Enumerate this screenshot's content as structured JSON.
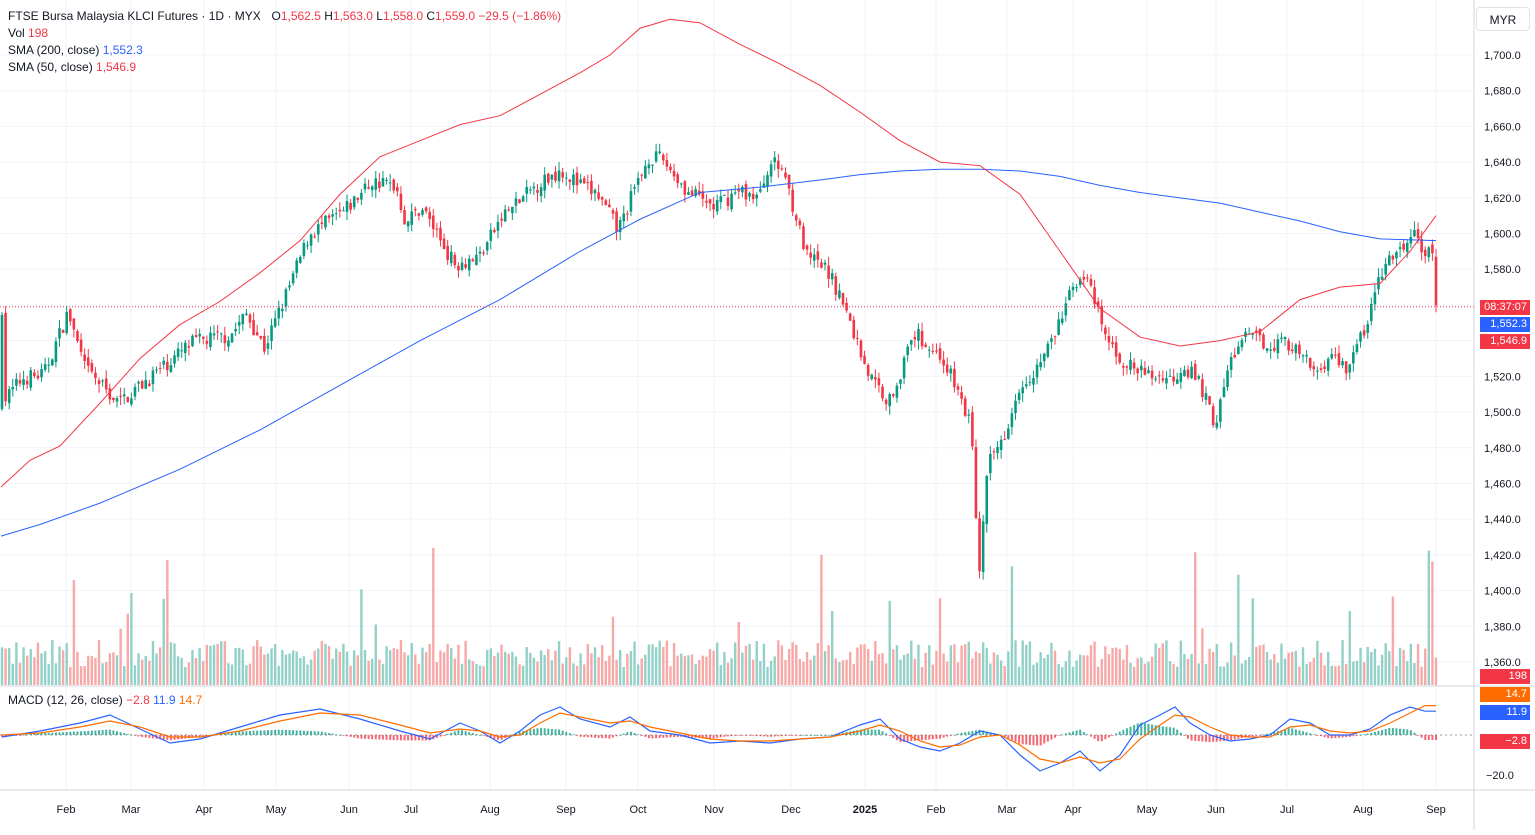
{
  "header": {
    "symbol": "FTSE Bursa Malaysia KLCI Futures",
    "interval": "1D",
    "exchange": "MYX",
    "open_label": "O",
    "open": "1,562.5",
    "high_label": "H",
    "high": "1,563.0",
    "low_label": "L",
    "low": "1,558.0",
    "close_label": "C",
    "close": "1,559.0",
    "change": "−29.5 (−1.86%)",
    "vol_label": "Vol",
    "vol": "198",
    "sma200_label": "SMA (200, close)",
    "sma200": "1,552.3",
    "sma50_label": "SMA (50, close)",
    "sma50": "1,546.9"
  },
  "currency": "MYR",
  "price_tags": {
    "countdown": "08:37:07",
    "sma200": "1,552.3",
    "sma50": "1,546.9",
    "volume": "198",
    "macd_signal": "14.7",
    "macd_line": "11.9",
    "macd_hist": "−2.8"
  },
  "macd_legend": {
    "label": "MACD (12, 26, close)",
    "hist": "−2.8",
    "macd": "11.9",
    "signal": "14.7"
  },
  "colors": {
    "up": "#089981",
    "down": "#f23645",
    "sma200": "#2962ff",
    "sma50": "#f23645",
    "vol_up": "#92d1c7",
    "vol_down": "#f7a9a7",
    "macd": "#2962ff",
    "signal": "#ff6d00"
  },
  "chart_data": {
    "type": "candlestick",
    "price_axis": {
      "ticks": [
        "1,700.0",
        "1,680.0",
        "1,660.0",
        "1,640.0",
        "1,620.0",
        "1,600.0",
        "1,580.0",
        "1,560.0",
        "1,540.0",
        "1,520.0",
        "1,500.0",
        "1,480.0",
        "1,460.0",
        "1,440.0",
        "1,420.0",
        "1,400.0",
        "1,380.0",
        "1,360.0"
      ],
      "ylim": [
        1355,
        1710
      ]
    },
    "time_axis": [
      "Feb",
      "Mar",
      "Apr",
      "May",
      "Jun",
      "Jul",
      "Aug",
      "Sep",
      "Oct",
      "Nov",
      "Dec",
      "2025",
      "Feb",
      "Mar",
      "Apr",
      "May",
      "Jun",
      "Jul",
      "Aug",
      "Sep"
    ],
    "last_price": 1559.0,
    "price_path": [
      [
        1496,
        1506
      ],
      [
        1508,
        1519
      ],
      [
        1521,
        1521
      ],
      [
        1536,
        1556
      ],
      [
        1546,
        1525
      ],
      [
        1567,
        1505
      ],
      [
        1613,
        1539
      ],
      [
        1636,
        1543
      ],
      [
        1646,
        1555
      ],
      [
        1657,
        1536
      ],
      [
        1670,
        1565
      ],
      [
        1685,
        1600
      ],
      [
        1706,
        1612
      ],
      [
        1723,
        1629
      ],
      [
        1738,
        1627
      ],
      [
        1744,
        1606
      ],
      [
        1754,
        1615
      ],
      [
        1774,
        1583
      ],
      [
        1789,
        1587
      ],
      [
        1804,
        1610
      ],
      [
        1825,
        1627
      ],
      [
        1840,
        1636
      ],
      [
        1850,
        1628
      ],
      [
        1862,
        1622
      ],
      [
        1875,
        1602
      ],
      [
        1883,
        1620
      ],
      [
        1894,
        1643
      ],
      [
        1903,
        1641
      ],
      [
        1918,
        1623
      ],
      [
        1934,
        1615
      ],
      [
        1950,
        1624
      ],
      [
        1962,
        1620
      ],
      [
        1968,
        1640
      ],
      [
        1977,
        1636
      ],
      [
        1991,
        1587
      ],
      [
        2003,
        1580
      ],
      [
        2011,
        1567
      ],
      [
        2030,
        1520
      ],
      [
        2042,
        1506
      ],
      [
        2058,
        1544
      ],
      [
        2075,
        1530
      ],
      [
        2085,
        1510
      ],
      [
        2093,
        1490
      ],
      [
        2097,
        1406
      ],
      [
        2103,
        1470
      ],
      [
        2113,
        1488
      ],
      [
        2122,
        1515
      ],
      [
        2133,
        1525
      ],
      [
        2144,
        1543
      ],
      [
        2156,
        1572
      ],
      [
        2161,
        1578
      ],
      [
        2166,
        1568
      ],
      [
        2176,
        1540
      ],
      [
        2186,
        1528
      ],
      [
        2197,
        1522
      ],
      [
        2207,
        1520
      ],
      [
        2218,
        1519
      ],
      [
        2223,
        1527
      ],
      [
        2233,
        1517
      ],
      [
        2243,
        1493
      ],
      [
        2253,
        1531
      ],
      [
        2263,
        1543
      ],
      [
        2276,
        1538
      ],
      [
        2286,
        1540
      ],
      [
        2296,
        1531
      ],
      [
        2305,
        1522
      ],
      [
        2314,
        1532
      ],
      [
        2324,
        1525
      ],
      [
        2335,
        1546
      ],
      [
        2346,
        1580
      ],
      [
        2357,
        1590
      ],
      [
        2365,
        1600
      ],
      [
        2371,
        1590
      ],
      [
        2378,
        1588
      ],
      [
        2379,
        1559
      ]
    ],
    "candle_count": 400,
    "sma200_path": [
      [
        1,
        1430.5
      ],
      [
        40,
        1437
      ],
      [
        100,
        1449
      ],
      [
        180,
        1468
      ],
      [
        260,
        1490
      ],
      [
        340,
        1515
      ],
      [
        420,
        1540
      ],
      [
        500,
        1563
      ],
      [
        580,
        1590
      ],
      [
        640,
        1608
      ],
      [
        700,
        1623
      ],
      [
        760,
        1626
      ],
      [
        820,
        1630
      ],
      [
        860,
        1633
      ],
      [
        900,
        1635
      ],
      [
        940,
        1636
      ],
      [
        980,
        1636
      ],
      [
        1020,
        1635
      ],
      [
        1060,
        1632
      ],
      [
        1100,
        1627
      ],
      [
        1140,
        1623
      ],
      [
        1180,
        1620
      ],
      [
        1220,
        1617
      ],
      [
        1260,
        1612
      ],
      [
        1300,
        1607
      ],
      [
        1340,
        1601
      ],
      [
        1380,
        1597
      ],
      [
        1436,
        1596
      ]
    ],
    "sma50_path": [
      [
        1,
        1458
      ],
      [
        30,
        1473
      ],
      [
        60,
        1481
      ],
      [
        100,
        1505
      ],
      [
        140,
        1530
      ],
      [
        180,
        1549
      ],
      [
        220,
        1562
      ],
      [
        260,
        1578
      ],
      [
        300,
        1596
      ],
      [
        340,
        1622
      ],
      [
        380,
        1643
      ],
      [
        420,
        1652
      ],
      [
        460,
        1661
      ],
      [
        500,
        1666
      ],
      [
        540,
        1678
      ],
      [
        580,
        1690
      ],
      [
        610,
        1700
      ],
      [
        640,
        1715
      ],
      [
        670,
        1720
      ],
      [
        700,
        1718
      ],
      [
        740,
        1706
      ],
      [
        780,
        1695
      ],
      [
        820,
        1683
      ],
      [
        860,
        1668
      ],
      [
        900,
        1652
      ],
      [
        940,
        1640
      ],
      [
        980,
        1638
      ],
      [
        1020,
        1622
      ],
      [
        1060,
        1590
      ],
      [
        1100,
        1558
      ],
      [
        1140,
        1542
      ],
      [
        1180,
        1537
      ],
      [
        1220,
        1540
      ],
      [
        1260,
        1545
      ],
      [
        1300,
        1563
      ],
      [
        1340,
        1570
      ],
      [
        1380,
        1572
      ],
      [
        1410,
        1590
      ],
      [
        1436,
        1610
      ]
    ],
    "volume_ylim": [
      0,
      440
    ],
    "macd_axis": {
      "ticks": [
        "−20.0"
      ],
      "ylim": [
        -28,
        28
      ]
    },
    "macd_line": [
      [
        2,
        -1
      ],
      [
        40,
        2
      ],
      [
        80,
        6
      ],
      [
        110,
        10
      ],
      [
        140,
        3
      ],
      [
        170,
        -4
      ],
      [
        200,
        -2
      ],
      [
        240,
        4
      ],
      [
        280,
        10
      ],
      [
        320,
        13
      ],
      [
        360,
        8
      ],
      [
        400,
        2
      ],
      [
        430,
        -2
      ],
      [
        460,
        6
      ],
      [
        480,
        2
      ],
      [
        500,
        -4
      ],
      [
        520,
        2
      ],
      [
        540,
        10
      ],
      [
        560,
        14
      ],
      [
        580,
        8
      ],
      [
        610,
        4
      ],
      [
        630,
        9
      ],
      [
        650,
        2
      ],
      [
        680,
        0
      ],
      [
        710,
        -4
      ],
      [
        740,
        -3
      ],
      [
        770,
        -4
      ],
      [
        800,
        -2
      ],
      [
        830,
        -1
      ],
      [
        860,
        5
      ],
      [
        880,
        8
      ],
      [
        900,
        -2
      ],
      [
        920,
        -6
      ],
      [
        940,
        -8
      ],
      [
        960,
        -4
      ],
      [
        980,
        2
      ],
      [
        1000,
        0
      ],
      [
        1020,
        -10
      ],
      [
        1040,
        -18
      ],
      [
        1060,
        -14
      ],
      [
        1080,
        -8
      ],
      [
        1100,
        -18
      ],
      [
        1120,
        -10
      ],
      [
        1140,
        5
      ],
      [
        1160,
        10
      ],
      [
        1175,
        14
      ],
      [
        1190,
        6
      ],
      [
        1210,
        0
      ],
      [
        1230,
        -3
      ],
      [
        1250,
        -2
      ],
      [
        1270,
        0
      ],
      [
        1290,
        8
      ],
      [
        1310,
        6
      ],
      [
        1330,
        0
      ],
      [
        1350,
        0
      ],
      [
        1370,
        3
      ],
      [
        1390,
        10
      ],
      [
        1410,
        14
      ],
      [
        1425,
        11.9
      ],
      [
        1436,
        11.9
      ]
    ],
    "signal_line": [
      [
        2,
        0
      ],
      [
        40,
        1
      ],
      [
        80,
        4
      ],
      [
        110,
        7
      ],
      [
        140,
        4
      ],
      [
        170,
        -1
      ],
      [
        200,
        -1
      ],
      [
        240,
        2
      ],
      [
        280,
        7
      ],
      [
        320,
        11
      ],
      [
        360,
        10
      ],
      [
        400,
        5
      ],
      [
        430,
        1
      ],
      [
        460,
        3
      ],
      [
        480,
        2
      ],
      [
        500,
        -1
      ],
      [
        520,
        0
      ],
      [
        540,
        6
      ],
      [
        560,
        11
      ],
      [
        580,
        9
      ],
      [
        610,
        6
      ],
      [
        630,
        7
      ],
      [
        650,
        4
      ],
      [
        680,
        1
      ],
      [
        710,
        -2
      ],
      [
        740,
        -3
      ],
      [
        770,
        -3
      ],
      [
        800,
        -2
      ],
      [
        830,
        -1
      ],
      [
        860,
        2
      ],
      [
        880,
        5
      ],
      [
        900,
        2
      ],
      [
        920,
        -3
      ],
      [
        940,
        -6
      ],
      [
        960,
        -5
      ],
      [
        980,
        -1
      ],
      [
        1000,
        0
      ],
      [
        1020,
        -5
      ],
      [
        1040,
        -12
      ],
      [
        1060,
        -14
      ],
      [
        1080,
        -11
      ],
      [
        1100,
        -14
      ],
      [
        1120,
        -12
      ],
      [
        1140,
        -2
      ],
      [
        1160,
        5
      ],
      [
        1175,
        10
      ],
      [
        1190,
        9
      ],
      [
        1210,
        4
      ],
      [
        1230,
        0
      ],
      [
        1250,
        -1
      ],
      [
        1270,
        -1
      ],
      [
        1290,
        4
      ],
      [
        1310,
        5
      ],
      [
        1330,
        2
      ],
      [
        1350,
        1
      ],
      [
        1370,
        2
      ],
      [
        1390,
        6
      ],
      [
        1410,
        11
      ],
      [
        1425,
        14.7
      ],
      [
        1436,
        14.7
      ]
    ]
  }
}
